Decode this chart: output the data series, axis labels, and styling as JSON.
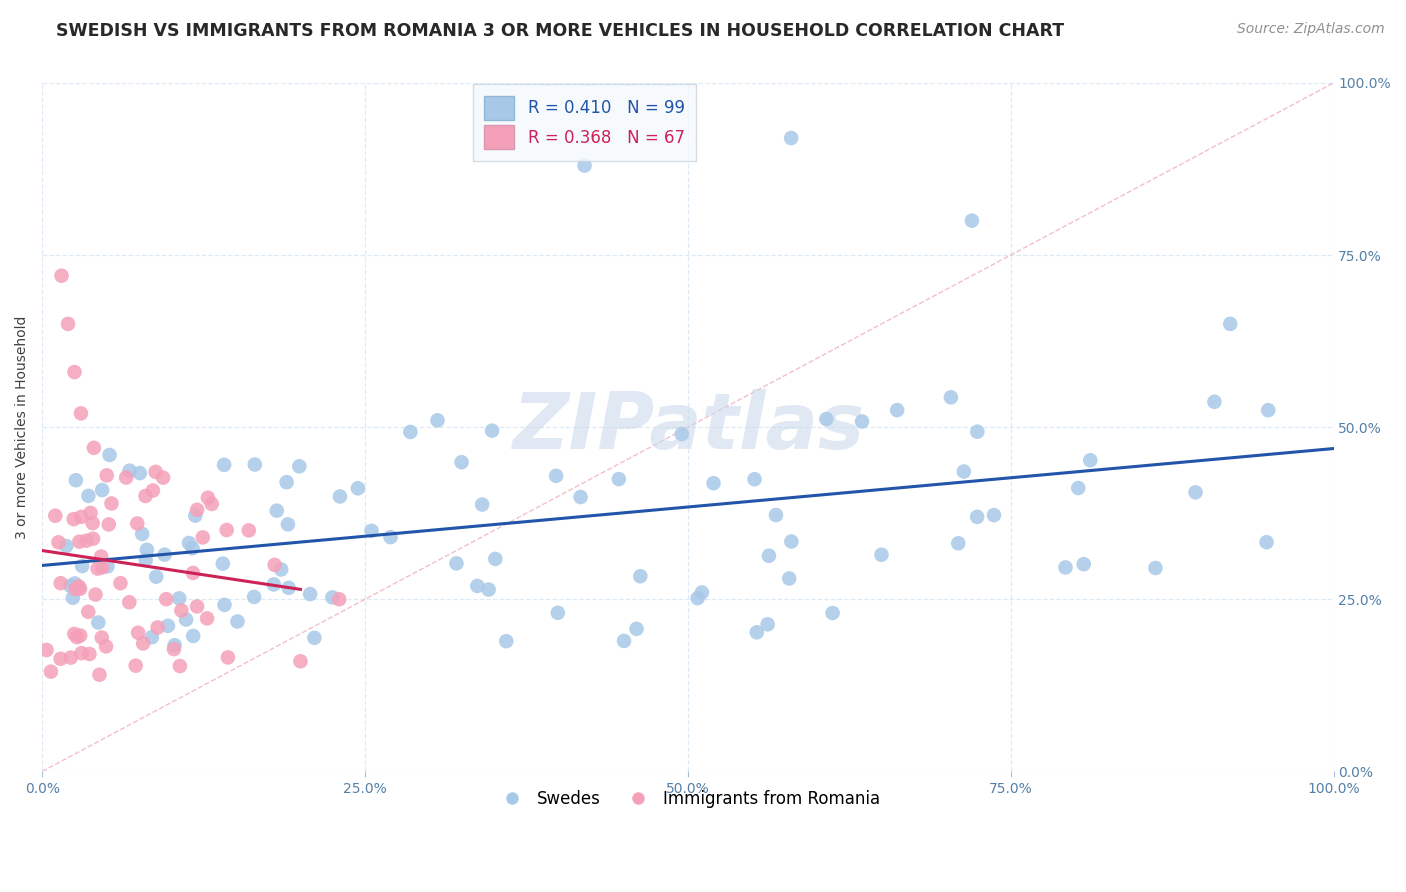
{
  "title": "SWEDISH VS IMMIGRANTS FROM ROMANIA 3 OR MORE VEHICLES IN HOUSEHOLD CORRELATION CHART",
  "source": "Source: ZipAtlas.com",
  "ylabel": "3 or more Vehicles in Household",
  "xlim": [
    0,
    100
  ],
  "ylim": [
    0,
    100
  ],
  "xtick_labels": [
    "0.0%",
    "25.0%",
    "50.0%",
    "75.0%",
    "100.0%"
  ],
  "ytick_labels_left": [
    "",
    "",
    "",
    "",
    ""
  ],
  "ytick_labels_right": [
    "100.0%",
    "75.0%",
    "50.0%",
    "25.0%",
    "0.0%"
  ],
  "xtick_vals": [
    0,
    25,
    50,
    75,
    100
  ],
  "ytick_vals": [
    0,
    25,
    50,
    75,
    100
  ],
  "legend_label_blue": "R = 0.410   N = 99",
  "legend_label_pink": "R = 0.368   N = 67",
  "blue_color": "#a8c8e8",
  "pink_color": "#f4a0b8",
  "blue_line_color": "#2255aa",
  "pink_line_color": "#cc2255",
  "diag_color": "#f0b8c8",
  "watermark": "ZIPatlas",
  "watermark_color": "#c8d8ea",
  "legend1_label": "Swedes",
  "legend2_label": "Immigrants from Romania",
  "background_color": "#ffffff",
  "grid_color": "#ddeaf5",
  "title_fontsize": 12.5,
  "axis_label_fontsize": 10,
  "tick_fontsize": 10,
  "legend_fontsize": 12,
  "source_fontsize": 10
}
